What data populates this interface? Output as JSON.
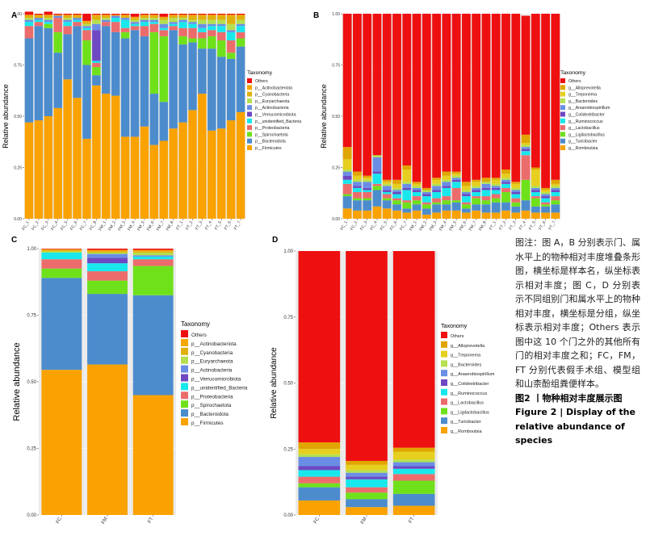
{
  "panels": {
    "A": {
      "label": "A"
    },
    "B": {
      "label": "B"
    },
    "C": {
      "label": "C"
    },
    "D": {
      "label": "D"
    }
  },
  "legend_title": "Taxonomy",
  "y_axis_label": "Relative abundance",
  "caption": {
    "cn": "图注：图 A，B 分别表示门、属水平上的物种相对丰度堆叠条形图，横坐标是样本名，纵坐标表示相对丰度；图 C，D 分别表示不同组别门和属水平上的物种相对丰度，横坐标是分组，纵坐标表示相对丰度；Others 表示图中这 10 个门之外的其他所有门的相对丰度之和；FC，FM，FT 分别代表假手术组、模型组和山柰酚组粪便样本。",
    "fig_cn": "图2 丨物种相对丰度展示图",
    "fig_en": "Figure 2 | Display of the relative abundance of species"
  },
  "chart_data": [
    {
      "panel": "A",
      "type": "bar",
      "stacked": true,
      "ylabel": "Relative abundance",
      "yticks": [
        "0.00",
        "0.25",
        "0.50",
        "0.75",
        "1.00"
      ],
      "ylim": [
        0,
        1
      ],
      "categories": [
        "FC_1",
        "FC_2",
        "FC_3",
        "FC_4",
        "FC_5",
        "FC_6",
        "FC_7",
        "FC_8",
        "FM_1",
        "FM_2",
        "FM_3",
        "FM_4",
        "FM_5",
        "FM_6",
        "FM_7",
        "FM_8",
        "FT_1",
        "FT_2",
        "FT_3",
        "FT_4",
        "FT_5",
        "FT_6",
        "FT_7"
      ],
      "legend": [
        "Others",
        "p__Actinobacteriota",
        "p__Cyanobacteria",
        "p__Euryarchaeota",
        "p__Actinobacteria",
        "p__Verrucomicrobiota",
        "p__unidentified_Bacteria",
        "p__Proteobacteria",
        "p__Spirochaetota",
        "p__Bacteroidota",
        "p__Firmicutes"
      ],
      "colors": {
        "Others": "#ee1010",
        "p__Actinobacteriota": "#f5a700",
        "p__Cyanobacteria": "#e0b10a",
        "p__Euryarchaeota": "#b5df4f",
        "p__Actinobacteria": "#6a8ee5",
        "p__Verrucomicrobiota": "#6e48c2",
        "p__unidentified_Bacteria": "#18e8ec",
        "p__Proteobacteria": "#ec6c6c",
        "p__Spirochaetota": "#6fe11b",
        "p__Bacteroidota": "#4c8ccd",
        "p__Firmicutes": "#f9a202"
      },
      "series": [
        {
          "name": "p__Firmicutes",
          "values": [
            0.47,
            0.48,
            0.5,
            0.54,
            0.68,
            0.59,
            0.39,
            0.65,
            0.61,
            0.6,
            0.4,
            0.4,
            0.45,
            0.36,
            0.38,
            0.44,
            0.47,
            0.53,
            0.61,
            0.43,
            0.44,
            0.48,
            0.52
          ]
        },
        {
          "name": "p__Bacteroidota",
          "values": [
            0.41,
            0.46,
            0.43,
            0.27,
            0.22,
            0.35,
            0.36,
            0.05,
            0.33,
            0.31,
            0.48,
            0.52,
            0.44,
            0.25,
            0.19,
            0.48,
            0.38,
            0.33,
            0.22,
            0.4,
            0.35,
            0.3,
            0.32
          ]
        },
        {
          "name": "p__Spirochaetota",
          "values": [
            0.0,
            0.0,
            0.02,
            0.1,
            0.0,
            0.0,
            0.12,
            0.04,
            0.0,
            0.0,
            0.03,
            0.0,
            0.0,
            0.3,
            0.32,
            0.0,
            0.04,
            0.02,
            0.05,
            0.06,
            0.08,
            0.03,
            0.04
          ]
        },
        {
          "name": "p__Proteobacteria",
          "values": [
            0.06,
            0.02,
            0.0,
            0.07,
            0.04,
            0.02,
            0.05,
            0.02,
            0.02,
            0.05,
            0.02,
            0.02,
            0.05,
            0.04,
            0.03,
            0.02,
            0.04,
            0.05,
            0.03,
            0.03,
            0.04,
            0.06,
            0.03
          ]
        },
        {
          "name": "p__unidentified_Bacteria",
          "values": [
            0.02,
            0.01,
            0.01,
            0.0,
            0.02,
            0.01,
            0.01,
            0.01,
            0.0,
            0.02,
            0.04,
            0.01,
            0.02,
            0.01,
            0.01,
            0.01,
            0.03,
            0.02,
            0.02,
            0.02,
            0.03,
            0.04,
            0.03
          ]
        },
        {
          "name": "p__Verrucomicrobiota",
          "values": [
            0.0,
            0.0,
            0.0,
            0.0,
            0.0,
            0.0,
            0.0,
            0.15,
            0.0,
            0.0,
            0.0,
            0.0,
            0.0,
            0.0,
            0.0,
            0.0,
            0.0,
            0.0,
            0.0,
            0.0,
            0.0,
            0.0,
            0.0
          ]
        },
        {
          "name": "p__Actinobacteria",
          "values": [
            0.01,
            0.01,
            0.01,
            0.01,
            0.01,
            0.01,
            0.01,
            0.03,
            0.01,
            0.01,
            0.01,
            0.01,
            0.01,
            0.01,
            0.02,
            0.01,
            0.01,
            0.01,
            0.02,
            0.01,
            0.01,
            0.01,
            0.01
          ]
        },
        {
          "name": "p__Euryarchaeota",
          "values": [
            0.01,
            0.0,
            0.01,
            0.0,
            0.01,
            0.0,
            0.01,
            0.02,
            0.01,
            0.0,
            0.0,
            0.01,
            0.01,
            0.01,
            0.02,
            0.02,
            0.01,
            0.01,
            0.02,
            0.02,
            0.02,
            0.03,
            0.02
          ]
        },
        {
          "name": "p__Cyanobacteria",
          "values": [
            0.01,
            0.01,
            0.01,
            0.0,
            0.01,
            0.01,
            0.01,
            0.02,
            0.01,
            0.0,
            0.01,
            0.01,
            0.01,
            0.01,
            0.01,
            0.01,
            0.01,
            0.02,
            0.02,
            0.02,
            0.02,
            0.04,
            0.02
          ]
        },
        {
          "name": "p__Actinobacteriota",
          "values": [
            0.005,
            0.005,
            0.005,
            0.005,
            0.005,
            0.005,
            0.005,
            0.005,
            0.005,
            0.005,
            0.005,
            0.005,
            0.005,
            0.005,
            0.005,
            0.005,
            0.005,
            0.005,
            0.005,
            0.005,
            0.005,
            0.005,
            0.005
          ]
        },
        {
          "name": "Others",
          "values": [
            0.015,
            0.005,
            0.015,
            0.005,
            0.005,
            0.005,
            0.035,
            0.005,
            0.005,
            0.005,
            0.005,
            0.015,
            0.005,
            0.005,
            0.015,
            0.005,
            0.005,
            0.005,
            0.005,
            0.005,
            0.005,
            0.005,
            0.005
          ]
        }
      ]
    },
    {
      "panel": "B",
      "type": "bar",
      "stacked": true,
      "ylabel": "Relative abundance",
      "yticks": [
        "0.00",
        "0.25",
        "0.50",
        "0.75",
        "1.00"
      ],
      "ylim": [
        0,
        1
      ],
      "categories": [
        "FC_1",
        "FC_2",
        "FC_3",
        "FC_4",
        "FC_5",
        "FC_6",
        "FC_7",
        "FM_1",
        "FM_2",
        "FM_3",
        "FM_4",
        "FM_5",
        "FM_6",
        "FM_7",
        "FM_8",
        "FT_1",
        "FT_2",
        "FT_3",
        "FT_4",
        "FT_5",
        "FT_6",
        "FT_7"
      ],
      "legend": [
        "Others",
        "g__Alloprevotella",
        "g__Treponema",
        "g__Bacteroides",
        "g__Anaerobiospirillum",
        "g__Colidextribacter",
        "g__Ruminococcus",
        "g__Lactobacillus",
        "g__Ligilactobacillus",
        "g__Turicibacter",
        "g__Romboutsia"
      ],
      "colors": {
        "Others": "#ee1010",
        "g__Alloprevotella": "#e0a500",
        "g__Treponema": "#e6cf1e",
        "g__Bacteroides": "#b5e04f",
        "g__Anaerobiospirillum": "#6a8ee5",
        "g__Colidextribacter": "#6e48c2",
        "g__Ruminococcus": "#18e8ec",
        "g__Lactobacillus": "#ec6c6c",
        "g__Ligilactobacillus": "#6fe11b",
        "g__Turicibacter": "#4c8ccd",
        "g__Romboutsia": "#f9a202"
      },
      "series": [
        {
          "name": "g__Romboutsia",
          "values": [
            0.05,
            0.04,
            0.04,
            0.06,
            0.05,
            0.04,
            0.03,
            0.04,
            0.02,
            0.03,
            0.04,
            0.04,
            0.03,
            0.04,
            0.03,
            0.03,
            0.04,
            0.03,
            0.04,
            0.03,
            0.03,
            0.03
          ]
        },
        {
          "name": "g__Turicibacter",
          "values": [
            0.06,
            0.05,
            0.05,
            0.08,
            0.04,
            0.03,
            0.02,
            0.03,
            0.03,
            0.04,
            0.03,
            0.04,
            0.02,
            0.03,
            0.04,
            0.05,
            0.04,
            0.03,
            0.05,
            0.03,
            0.03,
            0.04
          ]
        },
        {
          "name": "g__Ligilactobacillus",
          "values": [
            0.01,
            0.01,
            0.01,
            0.02,
            0.01,
            0.02,
            0.03,
            0.02,
            0.02,
            0.01,
            0.02,
            0.01,
            0.02,
            0.03,
            0.02,
            0.02,
            0.05,
            0.02,
            0.1,
            0.04,
            0.01,
            0.02
          ]
        },
        {
          "name": "g__Lactobacillus",
          "values": [
            0.05,
            0.03,
            0.03,
            0.01,
            0.02,
            0.01,
            0.01,
            0.02,
            0.01,
            0.02,
            0.02,
            0.06,
            0.01,
            0.01,
            0.02,
            0.02,
            0.02,
            0.02,
            0.12,
            0.01,
            0.01,
            0.02
          ]
        },
        {
          "name": "g__Ruminococcus",
          "values": [
            0.02,
            0.02,
            0.01,
            0.05,
            0.01,
            0.02,
            0.05,
            0.02,
            0.03,
            0.03,
            0.04,
            0.03,
            0.03,
            0.02,
            0.03,
            0.02,
            0.02,
            0.02,
            0.02,
            0.02,
            0.02,
            0.02
          ]
        },
        {
          "name": "g__Colidextribacter",
          "values": [
            0.02,
            0.01,
            0.01,
            0.01,
            0.01,
            0.01,
            0.01,
            0.01,
            0.01,
            0.01,
            0.01,
            0.01,
            0.01,
            0.01,
            0.01,
            0.01,
            0.01,
            0.01,
            0.01,
            0.01,
            0.01,
            0.01
          ]
        },
        {
          "name": "g__Anaerobiospirillum",
          "values": [
            0.02,
            0.02,
            0.03,
            0.07,
            0.02,
            0.01,
            0.02,
            0.01,
            0.01,
            0.02,
            0.02,
            0.01,
            0.01,
            0.01,
            0.02,
            0.01,
            0.01,
            0.01,
            0.01,
            0.01,
            0.01,
            0.01
          ]
        },
        {
          "name": "g__Bacteroides",
          "values": [
            0.01,
            0.01,
            0.01,
            0.01,
            0.01,
            0.01,
            0.01,
            0.01,
            0.01,
            0.01,
            0.01,
            0.01,
            0.01,
            0.01,
            0.01,
            0.01,
            0.01,
            0.01,
            0.01,
            0.01,
            0.01,
            0.01
          ]
        },
        {
          "name": "g__Treponema",
          "values": [
            0.05,
            0.02,
            0.01,
            0.0,
            0.01,
            0.02,
            0.06,
            0.01,
            0.0,
            0.02,
            0.02,
            0.01,
            0.02,
            0.02,
            0.0,
            0.02,
            0.02,
            0.02,
            0.01,
            0.08,
            0.01,
            0.01
          ]
        },
        {
          "name": "g__Alloprevotella",
          "values": [
            0.06,
            0.02,
            0.01,
            0.0,
            0.01,
            0.02,
            0.02,
            0.01,
            0.01,
            0.01,
            0.02,
            0.01,
            0.02,
            0.01,
            0.02,
            0.01,
            0.02,
            0.01,
            0.04,
            0.01,
            0.01,
            0.02
          ]
        },
        {
          "name": "Others",
          "values": [
            0.65,
            0.77,
            0.79,
            0.69,
            0.81,
            0.81,
            0.74,
            0.82,
            0.85,
            0.8,
            0.77,
            0.77,
            0.82,
            0.81,
            0.8,
            0.8,
            0.76,
            0.82,
            0.58,
            0.75,
            0.85,
            0.81
          ]
        }
      ]
    },
    {
      "panel": "C",
      "type": "bar",
      "stacked": true,
      "ylabel": "Relative abundance",
      "yticks": [
        "0.00",
        "0.25",
        "0.50",
        "0.75",
        "1.00"
      ],
      "ylim": [
        0,
        1
      ],
      "categories": [
        "FC",
        "FM",
        "FT"
      ],
      "legend": [
        "Others",
        "p__Actinobacteriota",
        "p__Cyanobacteria",
        "p__Euryarchaeota",
        "p__Actinobacteria",
        "p__Verrucomicrobiota",
        "p__unidentified_Bacteria",
        "p__Proteobacteria",
        "p__Spirochaetota",
        "p__Bacteroidota",
        "p__Firmicutes"
      ],
      "colors": {
        "Others": "#ee1010",
        "p__Actinobacteriota": "#f5a700",
        "p__Cyanobacteria": "#e0b10a",
        "p__Euryarchaeota": "#b5df4f",
        "p__Actinobacteria": "#6a8ee5",
        "p__Verrucomicrobiota": "#6e48c2",
        "p__unidentified_Bacteria": "#18e8ec",
        "p__Proteobacteria": "#ec6c6c",
        "p__Spirochaetota": "#6fe11b",
        "p__Bacteroidota": "#4c8ccd",
        "p__Firmicutes": "#f9a202"
      },
      "series": [
        {
          "name": "p__Firmicutes",
          "values": [
            0.545,
            0.565,
            0.45
          ]
        },
        {
          "name": "p__Bacteroidota",
          "values": [
            0.345,
            0.265,
            0.375
          ]
        },
        {
          "name": "p__Spirochaetota",
          "values": [
            0.035,
            0.05,
            0.11
          ]
        },
        {
          "name": "p__Proteobacteria",
          "values": [
            0.035,
            0.035,
            0.025
          ]
        },
        {
          "name": "p__unidentified_Bacteria",
          "values": [
            0.025,
            0.03,
            0.01
          ]
        },
        {
          "name": "p__Verrucomicrobiota",
          "values": [
            0.0,
            0.02,
            0.0
          ]
        },
        {
          "name": "p__Actinobacteria",
          "values": [
            0.0,
            0.015,
            0.005
          ]
        },
        {
          "name": "p__Euryarchaeota",
          "values": [
            0.005,
            0.005,
            0.01
          ]
        },
        {
          "name": "p__Cyanobacteria",
          "values": [
            0.005,
            0.005,
            0.005
          ]
        },
        {
          "name": "p__Actinobacteriota",
          "values": [
            0.003,
            0.005,
            0.005
          ]
        },
        {
          "name": "Others",
          "values": [
            0.002,
            0.005,
            0.005
          ]
        }
      ]
    },
    {
      "panel": "D",
      "type": "bar",
      "stacked": true,
      "ylabel": "Relative abundance",
      "yticks": [
        "0.00",
        "0.25",
        "0.50",
        "0.75",
        "1.00"
      ],
      "ylim": [
        0,
        1
      ],
      "categories": [
        "FC",
        "FM",
        "FT"
      ],
      "legend": [
        "Others",
        "g__Alloprevotella",
        "g__Treponema",
        "g__Bacteroides",
        "g__Anaerobiospirillum",
        "g__Colidextribacter",
        "g__Ruminococcus",
        "g__Lactobacillus",
        "g__Ligilactobacillus",
        "g__Turicibacter",
        "g__Romboutsia"
      ],
      "colors": {
        "Others": "#ee1010",
        "g__Alloprevotella": "#e0a500",
        "g__Treponema": "#e6cf1e",
        "g__Bacteroides": "#b5e04f",
        "g__Anaerobiospirillum": "#6a8ee5",
        "g__Colidextribacter": "#6e48c2",
        "g__Ruminococcus": "#18e8ec",
        "g__Lactobacillus": "#ec6c6c",
        "g__Ligilactobacillus": "#6fe11b",
        "g__Turicibacter": "#4c8ccd",
        "g__Romboutsia": "#f9a202"
      },
      "series": [
        {
          "name": "g__Romboutsia",
          "values": [
            0.055,
            0.03,
            0.035
          ]
        },
        {
          "name": "g__Turicibacter",
          "values": [
            0.05,
            0.03,
            0.045
          ]
        },
        {
          "name": "g__Ligilactobacillus",
          "values": [
            0.015,
            0.025,
            0.05
          ]
        },
        {
          "name": "g__Lactobacillus",
          "values": [
            0.025,
            0.02,
            0.025
          ]
        },
        {
          "name": "g__Ruminococcus",
          "values": [
            0.025,
            0.03,
            0.02
          ]
        },
        {
          "name": "g__Colidextribacter",
          "values": [
            0.015,
            0.01,
            0.01
          ]
        },
        {
          "name": "g__Anaerobiospirillum",
          "values": [
            0.035,
            0.015,
            0.015
          ]
        },
        {
          "name": "g__Bacteroides",
          "values": [
            0.01,
            0.01,
            0.01
          ]
        },
        {
          "name": "g__Treponema",
          "values": [
            0.02,
            0.02,
            0.03
          ]
        },
        {
          "name": "g__Alloprevotella",
          "values": [
            0.025,
            0.015,
            0.015
          ]
        },
        {
          "name": "Others",
          "values": [
            0.725,
            0.795,
            0.745
          ]
        }
      ]
    }
  ]
}
